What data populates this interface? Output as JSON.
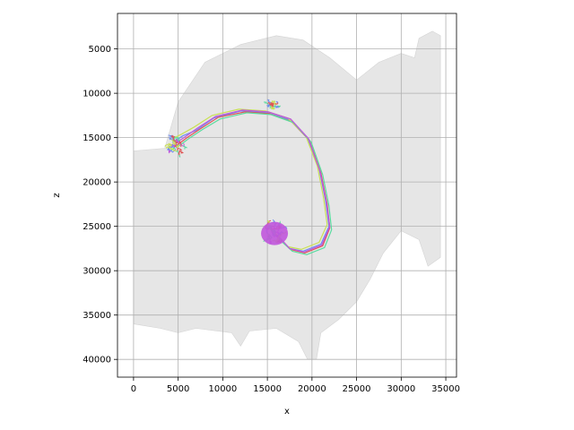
{
  "chart_data": {
    "type": "line",
    "title": "",
    "xlabel": "x",
    "ylabel": "z",
    "xlim": [
      -1800,
      36200
    ],
    "ylim": [
      1000,
      42000
    ],
    "y_inverted": true,
    "grid": true,
    "legend": "none",
    "x_ticks": [
      0,
      5000,
      10000,
      15000,
      20000,
      25000,
      30000,
      35000
    ],
    "y_ticks": [
      5000,
      10000,
      15000,
      20000,
      25000,
      30000,
      35000,
      40000
    ],
    "x_tick_labels": [
      "0",
      "5000",
      "10000",
      "15000",
      "20000",
      "25000",
      "30000",
      "35000"
    ],
    "y_tick_labels": [
      "5000",
      "10000",
      "15000",
      "20000",
      "25000",
      "30000",
      "35000",
      "40000"
    ],
    "background_mesh": {
      "color": "#e6e6e6",
      "outline": [
        [
          0,
          16500
        ],
        [
          3500,
          16200
        ],
        [
          5000,
          11000
        ],
        [
          8000,
          6500
        ],
        [
          12000,
          4500
        ],
        [
          16000,
          3500
        ],
        [
          19000,
          4000
        ],
        [
          22000,
          6000
        ],
        [
          25000,
          8500
        ],
        [
          27500,
          6500
        ],
        [
          30000,
          5500
        ],
        [
          31500,
          6000
        ],
        [
          32000,
          3800
        ],
        [
          33500,
          3000
        ],
        [
          34400,
          3500
        ],
        [
          34400,
          28500
        ],
        [
          33000,
          29500
        ],
        [
          32000,
          26500
        ],
        [
          30000,
          25500
        ],
        [
          28000,
          28000
        ],
        [
          26500,
          31000
        ],
        [
          25000,
          33500
        ],
        [
          23000,
          35500
        ],
        [
          21000,
          37000
        ],
        [
          20500,
          40000
        ],
        [
          19500,
          40000
        ],
        [
          18500,
          38000
        ],
        [
          16000,
          36500
        ],
        [
          13000,
          36800
        ],
        [
          12000,
          38500
        ],
        [
          11000,
          37000
        ],
        [
          7000,
          36500
        ],
        [
          5000,
          37000
        ],
        [
          3000,
          36500
        ],
        [
          0,
          36000
        ],
        [
          0,
          16500
        ]
      ]
    },
    "series": [
      {
        "color": "#6f8cf0",
        "values": [
          [
            4500,
            15500
          ],
          [
            5500,
            14800
          ],
          [
            7000,
            14200
          ],
          [
            9000,
            12800
          ],
          [
            12000,
            12000
          ],
          [
            15000,
            12200
          ],
          [
            17500,
            13000
          ],
          [
            19500,
            15000
          ],
          [
            20800,
            18500
          ],
          [
            21500,
            22000
          ],
          [
            21900,
            25000
          ],
          [
            21000,
            27000
          ],
          [
            19000,
            27800
          ],
          [
            17500,
            27500
          ],
          [
            16500,
            26500
          ],
          [
            16000,
            26000
          ]
        ]
      },
      {
        "color": "#e05555",
        "values": [
          [
            4800,
            15900
          ],
          [
            6000,
            15000
          ],
          [
            7500,
            14000
          ],
          [
            9500,
            12700
          ],
          [
            12500,
            12100
          ],
          [
            15200,
            12300
          ],
          [
            17700,
            13200
          ],
          [
            19700,
            15300
          ],
          [
            21000,
            19000
          ],
          [
            21700,
            22500
          ],
          [
            22000,
            25200
          ],
          [
            21200,
            27200
          ],
          [
            19200,
            28000
          ],
          [
            17600,
            27600
          ],
          [
            16500,
            26600
          ],
          [
            16100,
            26100
          ]
        ]
      },
      {
        "color": "#c9e055",
        "values": [
          [
            4200,
            15200
          ],
          [
            5400,
            14600
          ],
          [
            6800,
            13800
          ],
          [
            8800,
            12500
          ],
          [
            11800,
            11800
          ],
          [
            14800,
            12000
          ],
          [
            17300,
            12800
          ],
          [
            19300,
            14800
          ],
          [
            20600,
            18200
          ],
          [
            21300,
            21800
          ],
          [
            21700,
            24800
          ],
          [
            20800,
            26800
          ],
          [
            18800,
            27600
          ],
          [
            17300,
            27300
          ],
          [
            16400,
            26300
          ],
          [
            15900,
            25800
          ]
        ]
      },
      {
        "color": "#5adca0",
        "values": [
          [
            5000,
            16000
          ],
          [
            6200,
            15100
          ],
          [
            7700,
            14100
          ],
          [
            9700,
            12900
          ],
          [
            12700,
            12200
          ],
          [
            15400,
            12400
          ],
          [
            17900,
            13300
          ],
          [
            19900,
            15500
          ],
          [
            21200,
            19200
          ],
          [
            21900,
            22700
          ],
          [
            22200,
            25400
          ],
          [
            21400,
            27400
          ],
          [
            19400,
            28200
          ],
          [
            17800,
            27800
          ],
          [
            16700,
            26800
          ],
          [
            16200,
            26200
          ]
        ]
      },
      {
        "color": "#c055dc",
        "values": [
          [
            4600,
            15700
          ],
          [
            5800,
            14900
          ],
          [
            7200,
            13900
          ],
          [
            9200,
            12600
          ],
          [
            12200,
            11900
          ],
          [
            15100,
            12100
          ],
          [
            17600,
            12900
          ],
          [
            19600,
            15100
          ],
          [
            20900,
            18800
          ],
          [
            21600,
            22200
          ],
          [
            22000,
            25000
          ],
          [
            21100,
            27100
          ],
          [
            19100,
            27900
          ],
          [
            17500,
            27500
          ],
          [
            16600,
            26500
          ],
          [
            16100,
            26000
          ]
        ]
      }
    ],
    "clusters": [
      {
        "center": [
          4800,
          15900
        ],
        "spread": [
          1600,
          1400
        ],
        "colors": [
          "#c055dc",
          "#6f8cf0",
          "#5adca0",
          "#e05555",
          "#c9e055"
        ]
      },
      {
        "center": [
          15600,
          11300
        ],
        "spread": [
          1000,
          700
        ],
        "colors": [
          "#5adca0",
          "#6f8cf0",
          "#c9e055",
          "#e05555"
        ]
      },
      {
        "center": [
          15800,
          25800
        ],
        "spread": [
          1400,
          1800
        ],
        "colors": [
          "#c055dc",
          "#e05555",
          "#6f8cf0",
          "#c9e055",
          "#5adca0"
        ]
      }
    ],
    "soma": {
      "center": [
        15800,
        25800
      ],
      "color": "#c055dc"
    }
  }
}
